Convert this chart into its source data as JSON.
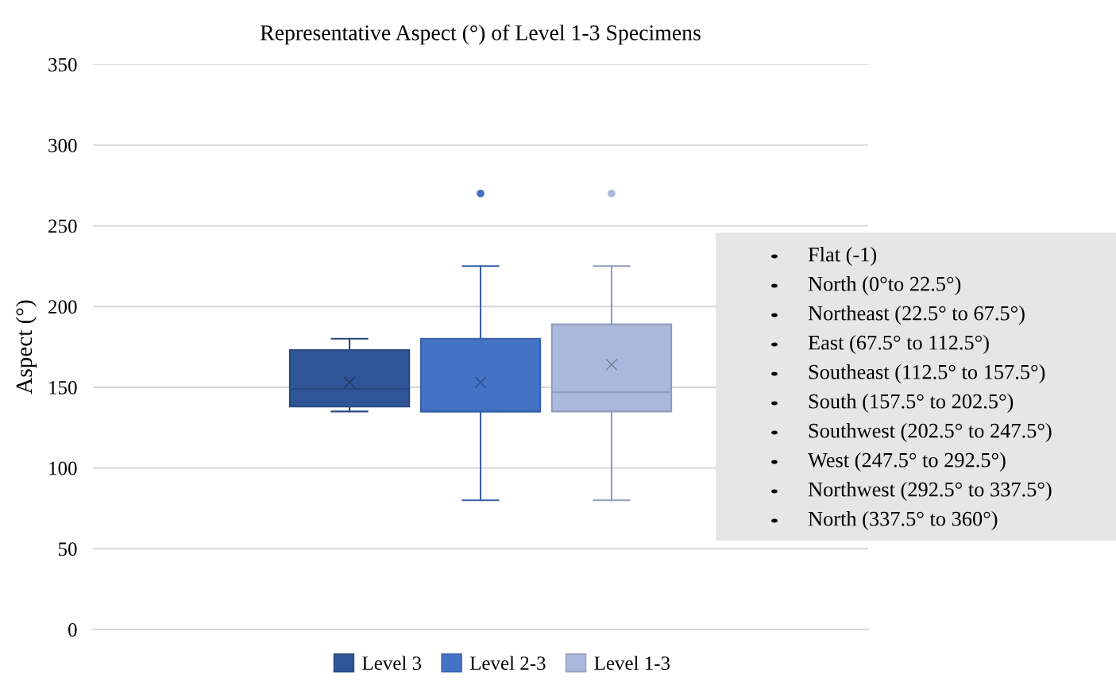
{
  "chart_data": {
    "type": "box",
    "title": "Representative Aspect (°) of Level 1-3 Specimens",
    "ylabel": "Aspect (°)",
    "categories": [
      null
    ],
    "series": [
      {
        "name": "Level 3",
        "color": "#2f5597",
        "boxes": [
          {
            "low": 135,
            "q1": 138,
            "median": 149,
            "q3": 173,
            "high": 180,
            "mean": 153
          }
        ]
      },
      {
        "name": "Level 2-3",
        "color": "#4472c4",
        "boxes": [
          {
            "low": 80,
            "q1": 135,
            "median": 135,
            "q3": 180,
            "high": 225,
            "mean": 153,
            "outliers": [
              270
            ]
          }
        ]
      },
      {
        "name": "Level 1-3",
        "color": "#a9b8dc",
        "boxes": [
          {
            "low": 80,
            "q1": 135,
            "median": 147,
            "q3": 189,
            "high": 225,
            "mean": 164,
            "outliers": [
              270
            ]
          }
        ]
      }
    ],
    "ylim": [
      0,
      350
    ],
    "yticks": [
      0,
      50,
      100,
      150,
      200,
      250,
      300,
      350
    ],
    "grid": "y",
    "legend": "bottom",
    "annotations": [
      "Flat (-1)",
      "North (0°to 22.5°)",
      "Northeast (22.5° to 67.5°)",
      "East (67.5° to 112.5°)",
      "Southeast (112.5° to 157.5°)",
      "South (157.5° to 202.5°)",
      "Southwest (202.5° to 247.5°)",
      "West (247.5° to 292.5°)",
      "Northwest (292.5° to 337.5°)",
      "North (337.5° to 360°)"
    ]
  }
}
